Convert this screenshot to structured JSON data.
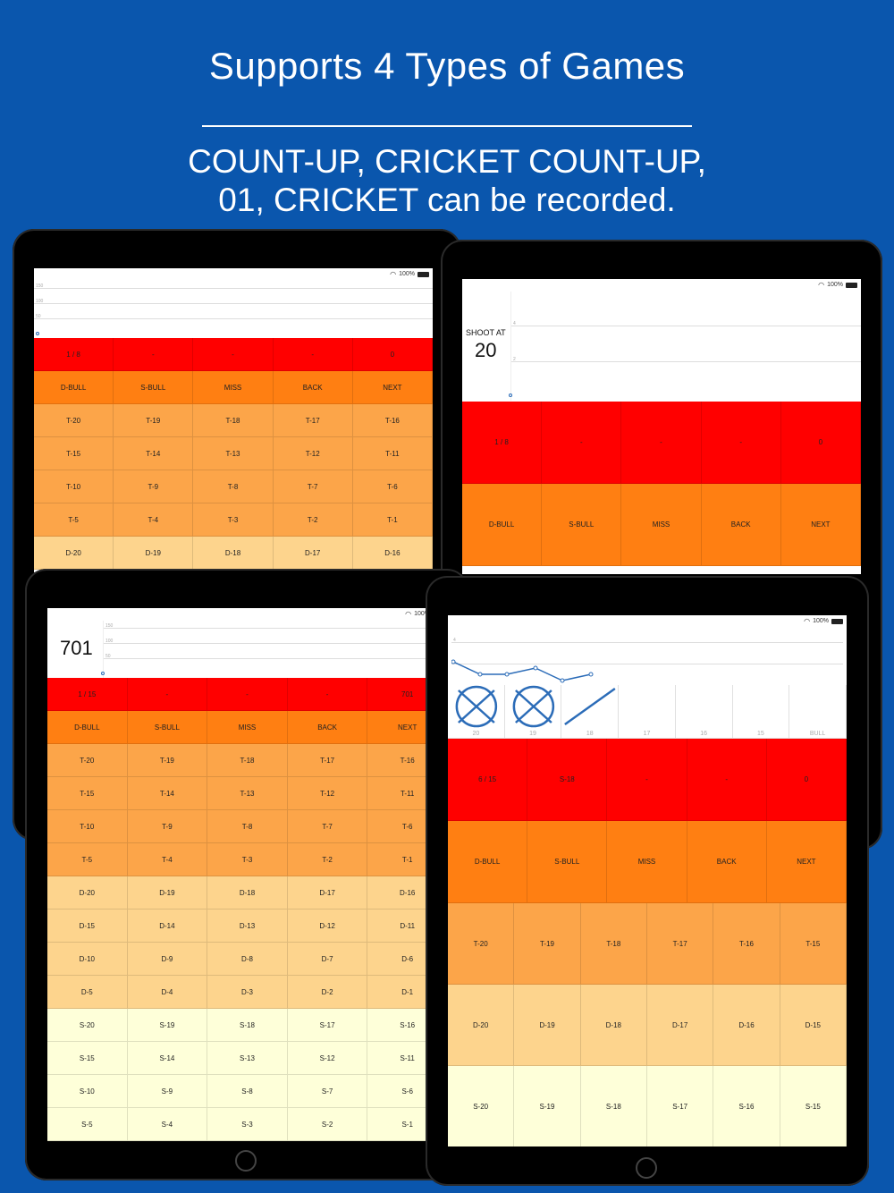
{
  "header": {
    "title": "Supports 4 Types of Games",
    "line1": "COUNT-UP, CRICKET COUNT-UP,",
    "line2": "01, CRICKET can be recorded."
  },
  "status": {
    "battery": "100%"
  },
  "colors": {
    "background": "#0a56ad",
    "red": "#ff0000",
    "orange": "#ff7f12",
    "light_orange": "#fca549",
    "peach": "#fdd48d",
    "cream": "#feffd9",
    "graph_line": "#2b6cb8"
  },
  "icons": [
    "wifi-icon",
    "battery-icon",
    "home-button-icon",
    "cross-mark-icon",
    "slash-mark-icon"
  ],
  "graph_ticks": {
    "countup": [
      "150",
      "100",
      "50"
    ],
    "shoot": [
      "4",
      "2"
    ],
    "o1": [
      "150",
      "100",
      "50"
    ],
    "cricket": [
      "4"
    ]
  },
  "tablet1": {
    "rows": [
      {
        "color": "red",
        "cells": [
          "1 / 8",
          "-",
          "-",
          "-",
          "0"
        ]
      },
      {
        "color": "orange",
        "cells": [
          "D-BULL",
          "S-BULL",
          "MISS",
          "BACK",
          "NEXT"
        ]
      },
      {
        "color": "lightor",
        "cells": [
          "T-20",
          "T-19",
          "T-18",
          "T-17",
          "T-16"
        ]
      },
      {
        "color": "lightor",
        "cells": [
          "T-15",
          "T-14",
          "T-13",
          "T-12",
          "T-11"
        ]
      },
      {
        "color": "lightor",
        "cells": [
          "T-10",
          "T-9",
          "T-8",
          "T-7",
          "T-6"
        ]
      },
      {
        "color": "lightor",
        "cells": [
          "T-5",
          "T-4",
          "T-3",
          "T-2",
          "T-1"
        ]
      },
      {
        "color": "peach",
        "cells": [
          "D-20",
          "D-19",
          "D-18",
          "D-17",
          "D-16"
        ]
      }
    ]
  },
  "tablet2": {
    "shoot_label": "SHOOT AT",
    "shoot_value": "20",
    "rows": [
      {
        "color": "red",
        "cells": [
          "1 / 8",
          "-",
          "-",
          "-",
          "0"
        ]
      },
      {
        "color": "orange",
        "cells": [
          "D-BULL",
          "S-BULL",
          "MISS",
          "BACK",
          "NEXT"
        ]
      }
    ]
  },
  "tablet3": {
    "score": "701",
    "rows": [
      {
        "color": "red",
        "cells": [
          "1 / 15",
          "-",
          "-",
          "-",
          "701"
        ]
      },
      {
        "color": "orange",
        "cells": [
          "D-BULL",
          "S-BULL",
          "MISS",
          "BACK",
          "NEXT"
        ]
      },
      {
        "color": "lightor",
        "cells": [
          "T-20",
          "T-19",
          "T-18",
          "T-17",
          "T-16"
        ]
      },
      {
        "color": "lightor",
        "cells": [
          "T-15",
          "T-14",
          "T-13",
          "T-12",
          "T-11"
        ]
      },
      {
        "color": "lightor",
        "cells": [
          "T-10",
          "T-9",
          "T-8",
          "T-7",
          "T-6"
        ]
      },
      {
        "color": "lightor",
        "cells": [
          "T-5",
          "T-4",
          "T-3",
          "T-2",
          "T-1"
        ]
      },
      {
        "color": "peach",
        "cells": [
          "D-20",
          "D-19",
          "D-18",
          "D-17",
          "D-16"
        ]
      },
      {
        "color": "peach",
        "cells": [
          "D-15",
          "D-14",
          "D-13",
          "D-12",
          "D-11"
        ]
      },
      {
        "color": "peach",
        "cells": [
          "D-10",
          "D-9",
          "D-8",
          "D-7",
          "D-6"
        ]
      },
      {
        "color": "peach",
        "cells": [
          "D-5",
          "D-4",
          "D-3",
          "D-2",
          "D-1"
        ]
      },
      {
        "color": "cream",
        "cells": [
          "S-20",
          "S-19",
          "S-18",
          "S-17",
          "S-16"
        ]
      },
      {
        "color": "cream",
        "cells": [
          "S-15",
          "S-14",
          "S-13",
          "S-12",
          "S-11"
        ]
      },
      {
        "color": "cream",
        "cells": [
          "S-10",
          "S-9",
          "S-8",
          "S-7",
          "S-6"
        ]
      },
      {
        "color": "cream",
        "cells": [
          "S-5",
          "S-4",
          "S-3",
          "S-2",
          "S-1"
        ]
      }
    ]
  },
  "tablet4": {
    "cricket_numbers": [
      "20",
      "19",
      "18",
      "17",
      "16",
      "15",
      "BULL"
    ],
    "cricket_marks": [
      "cross",
      "cross",
      "slash",
      "",
      "",
      "",
      ""
    ],
    "rows5": [
      {
        "color": "red",
        "cells": [
          "6 / 15",
          "S-18",
          "-",
          "-",
          "0"
        ]
      },
      {
        "color": "orange",
        "cells": [
          "D-BULL",
          "S-BULL",
          "MISS",
          "BACK",
          "NEXT"
        ]
      }
    ],
    "rows6": [
      {
        "color": "lightor",
        "cells": [
          "T-20",
          "T-19",
          "T-18",
          "T-17",
          "T-16",
          "T-15"
        ]
      },
      {
        "color": "peach",
        "cells": [
          "D-20",
          "D-19",
          "D-18",
          "D-17",
          "D-16",
          "D-15"
        ]
      },
      {
        "color": "cream",
        "cells": [
          "S-20",
          "S-19",
          "S-18",
          "S-17",
          "S-16",
          "S-15"
        ]
      }
    ]
  }
}
